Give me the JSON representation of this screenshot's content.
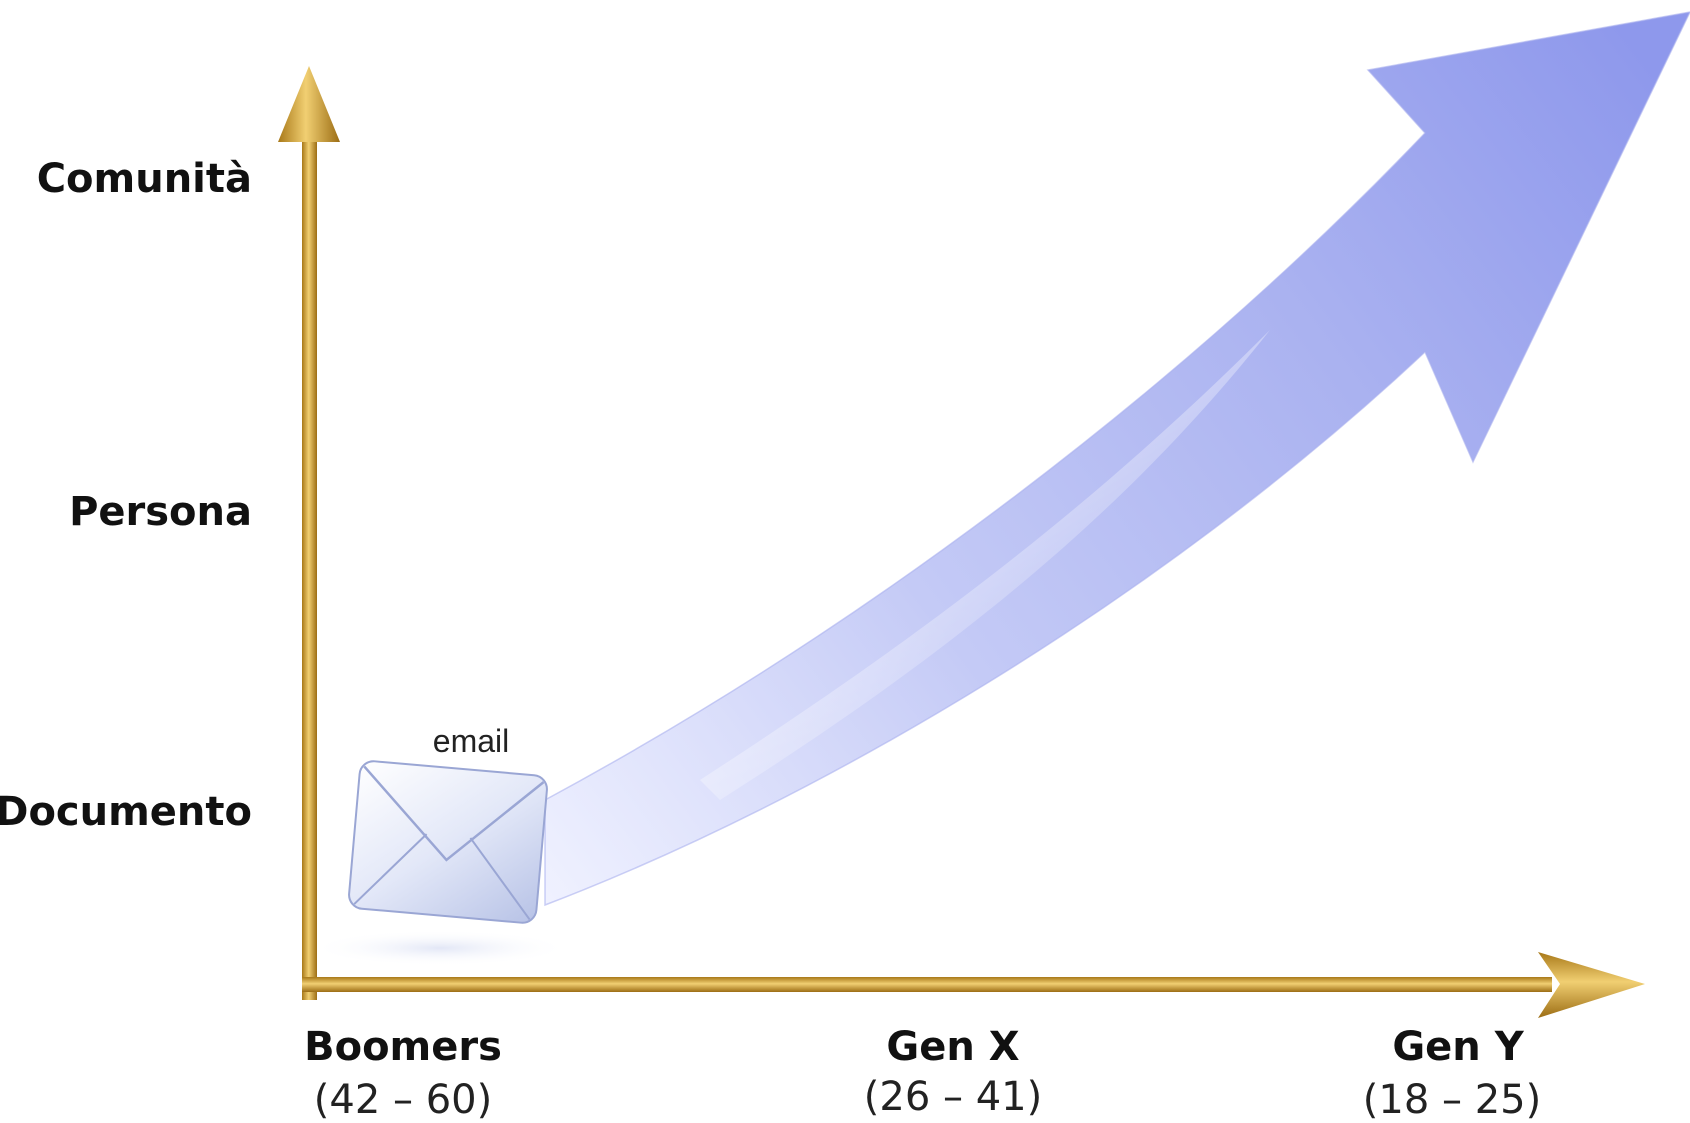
{
  "y_axis": {
    "levels": [
      {
        "label": "Comunità"
      },
      {
        "label": "Persona"
      },
      {
        "label": "Documento"
      }
    ]
  },
  "x_axis": {
    "generations": [
      {
        "name": "Boomers",
        "range": "(42 – 60)"
      },
      {
        "name": "Gen X",
        "range": "(26 – 41)"
      },
      {
        "name": "Gen Y",
        "range": "(18 – 25)"
      }
    ]
  },
  "email": {
    "label": "email",
    "icon": "envelope-icon"
  },
  "colors": {
    "axis": "#c9982e",
    "growth_arrow": "#9aa3ee"
  }
}
